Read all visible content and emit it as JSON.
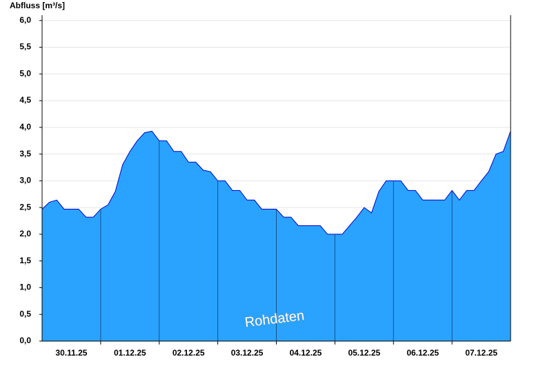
{
  "chart_data": {
    "type": "area",
    "title": "Abfluss [m³/s]",
    "annotation": "Rohdaten",
    "x": [
      null,
      null,
      null,
      null,
      "30.11.25",
      null,
      null,
      null,
      null,
      null,
      null,
      null,
      "01.12.25",
      null,
      null,
      null,
      null,
      null,
      null,
      null,
      "02.12.25",
      null,
      null,
      null,
      null,
      null,
      null,
      null,
      "03.12.25",
      null,
      null,
      null,
      null,
      null,
      null,
      null,
      "04.12.25",
      null,
      null,
      null,
      null,
      null,
      null,
      null,
      "05.12.25",
      null,
      null,
      null,
      null,
      null,
      null,
      null,
      "06.12.25",
      null,
      null,
      null,
      null,
      null,
      null,
      null,
      "07.12.25",
      null,
      null,
      null,
      null
    ],
    "values": [
      2.47,
      2.6,
      2.64,
      2.47,
      2.47,
      2.47,
      2.32,
      2.32,
      2.47,
      2.55,
      2.8,
      3.3,
      3.55,
      3.75,
      3.9,
      3.93,
      3.75,
      3.75,
      3.55,
      3.55,
      3.35,
      3.35,
      3.2,
      3.17,
      3.0,
      3.0,
      2.82,
      2.82,
      2.64,
      2.64,
      2.47,
      2.47,
      2.47,
      2.32,
      2.32,
      2.16,
      2.16,
      2.16,
      2.16,
      2.0,
      2.0,
      2.0,
      2.16,
      2.32,
      2.5,
      2.4,
      2.8,
      3.0,
      3.0,
      3.0,
      2.82,
      2.82,
      2.64,
      2.64,
      2.64,
      2.64,
      2.82,
      2.64,
      2.82,
      2.82,
      3.0,
      3.17,
      3.5,
      3.55,
      3.93
    ],
    "color": "#29a3ff",
    "line_color": "#0000cc",
    "ylim": [
      0,
      6.1
    ],
    "yticks": [
      {
        "value": 0,
        "label": "0,0"
      },
      {
        "value": 0.5,
        "label": "0,5"
      },
      {
        "value": 1,
        "label": "1,0"
      },
      {
        "value": 1.5,
        "label": "1,5"
      },
      {
        "value": 2,
        "label": "2,0"
      },
      {
        "value": 2.5,
        "label": "2,5"
      },
      {
        "value": 3,
        "label": "3,0"
      },
      {
        "value": 3.5,
        "label": "3,5"
      },
      {
        "value": 4,
        "label": "4,0"
      },
      {
        "value": 4.5,
        "label": "4,5"
      },
      {
        "value": 5,
        "label": "5,0"
      },
      {
        "value": 5.5,
        "label": "5,5"
      },
      {
        "value": 6,
        "label": "6,0"
      }
    ],
    "grid": true
  }
}
